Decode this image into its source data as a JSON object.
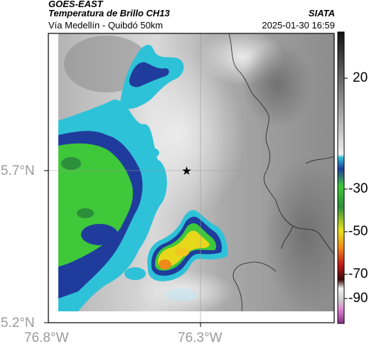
{
  "header": {
    "satellite": "GOES-EAST",
    "product": "Temperatura de Brillo CH13",
    "route": "Vía Medellín - Quibdó 50km",
    "source": "SIATA",
    "datetime": "2025-01-30 16:59"
  },
  "axes": {
    "lat_labels": [
      "5.7°N",
      "5.2°N"
    ],
    "lon_labels": [
      "76.8°W",
      "76.3°W"
    ]
  },
  "colorbar": {
    "labels": [
      "20",
      "-30",
      "-50",
      "-70",
      "-90"
    ]
  },
  "map": {
    "marker": "star-icon",
    "colors": {
      "cold_core": "#e8d81c",
      "warm_core": "#f08a1a",
      "green": "#3fc83a",
      "blue_edge": "#1f3c9c",
      "cyan": "#2ec2d8",
      "grey": "#a8a8a8"
    }
  }
}
